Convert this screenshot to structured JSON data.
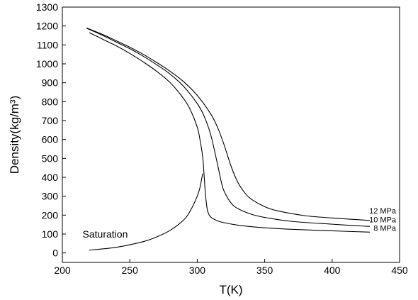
{
  "chart_data": {
    "type": "line",
    "title": "",
    "xlabel": "T(K)",
    "ylabel": "Density(kg/m³)",
    "xlim": [
      200,
      450
    ],
    "ylim": [
      -50,
      1300
    ],
    "x_ticks": [
      200,
      250,
      300,
      350,
      400,
      450
    ],
    "y_ticks": [
      0,
      100,
      200,
      300,
      400,
      500,
      600,
      700,
      800,
      900,
      1000,
      1100,
      1200,
      1300
    ],
    "grid": false,
    "legend": "none",
    "annotations": [
      {
        "text": "Saturation",
        "x": 215,
        "y": 100
      }
    ],
    "series": [
      {
        "name": "8 MPa",
        "label": "8 MPa",
        "x": [
          220,
          230,
          240,
          250,
          260,
          270,
          280,
          290,
          295,
          300,
          302,
          304,
          305,
          306,
          307,
          308,
          310,
          315,
          320,
          330,
          340,
          350,
          370,
          400,
          428
        ],
        "y": [
          1165,
          1130,
          1095,
          1055,
          1010,
          960,
          900,
          815,
          755,
          665,
          600,
          510,
          420,
          320,
          250,
          215,
          190,
          170,
          160,
          147,
          139,
          133,
          125,
          117,
          110
        ]
      },
      {
        "name": "10 MPa",
        "label": "10 MPa",
        "x": [
          218,
          230,
          240,
          250,
          260,
          270,
          280,
          290,
          300,
          305,
          310,
          315,
          318,
          320,
          325,
          330,
          340,
          350,
          370,
          400,
          428
        ],
        "y": [
          1188,
          1150,
          1115,
          1080,
          1040,
          995,
          945,
          880,
          790,
          725,
          625,
          470,
          370,
          325,
          265,
          235,
          205,
          188,
          167,
          152,
          140
        ]
      },
      {
        "name": "12 MPa",
        "label": "12 MPa",
        "x": [
          218,
          230,
          240,
          250,
          260,
          270,
          280,
          290,
          300,
          310,
          315,
          320,
          325,
          330,
          335,
          340,
          350,
          360,
          380,
          400,
          428
        ],
        "y": [
          1190,
          1155,
          1122,
          1088,
          1050,
          1007,
          960,
          905,
          833,
          735,
          665,
          570,
          460,
          375,
          320,
          285,
          245,
          222,
          197,
          185,
          172
        ]
      },
      {
        "name": "Saturation",
        "x": [
          220,
          240,
          260,
          270,
          280,
          290,
          295,
          300,
          302,
          304
        ],
        "y": [
          15,
          30,
          60,
          85,
          120,
          175,
          225,
          300,
          345,
          420
        ]
      }
    ]
  }
}
